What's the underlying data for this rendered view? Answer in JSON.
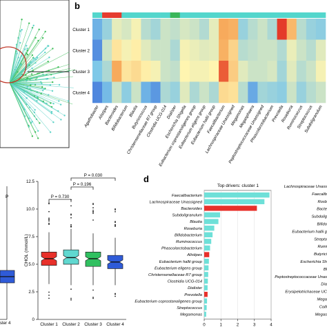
{
  "panel_letters": {
    "b": "b",
    "d": "d"
  },
  "chart_data": [
    {
      "type": "heatmap",
      "panel": "b",
      "rows": [
        "Cluster 1",
        "Cluster 2",
        "Cluster 3",
        "Cluster 4"
      ],
      "columns": [
        "Agathobacter",
        "Alistipes",
        "Bacteroides",
        "Bifidobacterium",
        "Blautia",
        "Butyricicoccus",
        "Christensenellaceae R7 group",
        "Clostridia UCG-014",
        "Dialister",
        "Escherichia Shigella",
        "Eubacterium coprostanoligenes group",
        "Eubacterium eligens group",
        "Eubacterium hallii group",
        "Faecalibacterium",
        "Lachnospiraceae Unassigned",
        "Megamonas",
        "Megasphaera",
        "Peptostreptococcaceae Unassigned",
        "Phascolarctobacterium",
        "Prevotella",
        "Roseburia",
        "Ruminococcus",
        "Streptococcus",
        "Subdoligranulum"
      ],
      "values": [
        [
          0.2,
          0.3,
          0.45,
          0.42,
          0.48,
          0.36,
          0.32,
          0.4,
          0.38,
          0.42,
          0.4,
          0.35,
          0.45,
          0.72,
          0.7,
          0.3,
          0.36,
          0.4,
          0.34,
          0.95,
          0.68,
          0.36,
          0.3,
          0.28
        ],
        [
          0.12,
          0.4,
          0.55,
          0.48,
          0.52,
          0.44,
          0.4,
          0.4,
          0.34,
          0.48,
          0.46,
          0.44,
          0.45,
          0.7,
          0.6,
          0.36,
          0.38,
          0.4,
          0.4,
          0.35,
          0.46,
          0.4,
          0.36,
          0.44
        ],
        [
          0.25,
          0.34,
          0.72,
          0.55,
          0.58,
          0.52,
          0.48,
          0.4,
          0.38,
          0.5,
          0.48,
          0.48,
          0.5,
          0.88,
          0.62,
          0.44,
          0.4,
          0.4,
          0.42,
          0.32,
          0.44,
          0.36,
          0.4,
          0.48
        ],
        [
          0.1,
          0.22,
          0.4,
          0.28,
          0.4,
          0.2,
          0.14,
          0.34,
          0.3,
          0.44,
          0.34,
          0.4,
          0.34,
          0.58,
          0.56,
          0.36,
          0.18,
          0.32,
          0.3,
          0.28,
          0.4,
          0.3,
          0.36,
          0.4
        ]
      ],
      "top_bar": [
        "teal",
        "red",
        "red",
        "teal",
        "teal",
        "teal",
        "teal",
        "teal",
        "green",
        "teal",
        "teal",
        "teal",
        "teal",
        "teal",
        "teal",
        "teal",
        "teal",
        "teal",
        "teal",
        "teal",
        "teal",
        "teal",
        "teal",
        "teal"
      ],
      "colorscale": [
        "#2f5bd8",
        "#7ec8e8",
        "#fff5b0",
        "#f6a050",
        "#e02020"
      ]
    },
    {
      "type": "box",
      "panel": "c",
      "ylabel": "CHOL (mmol/L)",
      "ylim": [
        0,
        12.5
      ],
      "yticks": [
        0,
        2.5,
        5.0,
        7.5,
        10.0,
        12.5
      ],
      "ytick_labels": [
        "0",
        "2.5",
        "5.0",
        "7.5",
        "10.0",
        "12.5"
      ],
      "categories": [
        "Cluster 1",
        "Cluster 2",
        "Cluster 3",
        "Cluster 4"
      ],
      "boxes": [
        {
          "q1": 4.9,
          "median": 5.5,
          "q3": 6.1,
          "wlow": 3.2,
          "whigh": 7.9,
          "color": "#e8302a"
        },
        {
          "q1": 5.0,
          "median": 5.6,
          "q3": 6.3,
          "wlow": 3.1,
          "whigh": 8.2,
          "color": "#60d8d0"
        },
        {
          "q1": 4.8,
          "median": 5.5,
          "q3": 6.1,
          "wlow": 3.1,
          "whigh": 7.8,
          "color": "#30c060"
        },
        {
          "q1": 4.6,
          "median": 5.2,
          "q3": 5.8,
          "wlow": 3.1,
          "whigh": 7.4,
          "color": "#2f5bd8"
        }
      ],
      "pvalues": [
        {
          "from": 0,
          "to": 1,
          "label": "P = 0.730"
        },
        {
          "from": 1,
          "to": 2,
          "label": "P = 0.196"
        },
        {
          "from": 1,
          "to": 3,
          "label": "P = 0.030"
        }
      ],
      "partial_left_tick_label": "Cluster 4"
    },
    {
      "type": "bar",
      "panel": "d",
      "title": "Top drivers: cluster 1",
      "xlabel": "Mean Abundance (%)",
      "xlim": [
        0,
        4
      ],
      "xticks": [
        0,
        1,
        2,
        3,
        4
      ],
      "categories": [
        "Faecalibacterium",
        "Lachnospiraceae Unassigned",
        "Bacteroides",
        "Subdoligranulum",
        "Blautia",
        "Roseburia",
        "Bifidobacterium",
        "Ruminococcus",
        "Phascolarctobacterium",
        "Alistipes",
        "Eubacterium hallii group",
        "Eubacterium eligens group",
        "Christensenellaceae R7 group",
        "Clostridia UCG-014",
        "Dialister",
        "Prevotella",
        "Eubacterium coprostanoligenes group",
        "Streptococcus",
        "Megamonas"
      ],
      "values": [
        3.9,
        3.6,
        3.15,
        0.95,
        0.85,
        0.6,
        0.5,
        0.42,
        0.35,
        0.3,
        0.28,
        0.26,
        0.24,
        0.22,
        0.2,
        0.2,
        0.17,
        0.15,
        0.12
      ],
      "bar_colors": [
        "#6ee0d8",
        "#6ee0d8",
        "#e8302a",
        "#6ee0d8",
        "#6ee0d8",
        "#6ee0d8",
        "#6ee0d8",
        "#6ee0d8",
        "#6ee0d8",
        "#e8302a",
        "#6ee0d8",
        "#6ee0d8",
        "#6ee0d8",
        "#6ee0d8",
        "#6ee0d8",
        "#e8302a",
        "#6ee0d8",
        "#6ee0d8",
        "#6ee0d8"
      ],
      "right_partial_labels": [
        "Lachnospiraceae Unass",
        "Faecalib",
        "Rosb",
        "Bacte",
        "Subdolig",
        "Bifido",
        "Eubacterium hallii g",
        "Strepto",
        "Rumi",
        "Butyrici",
        "Escherichia Sh",
        "Bl",
        "Peptostreptococcaceae Unas",
        "Dia",
        "Erysipelotrichaceae UC",
        "Mega",
        "Colli",
        "Megas"
      ]
    }
  ]
}
